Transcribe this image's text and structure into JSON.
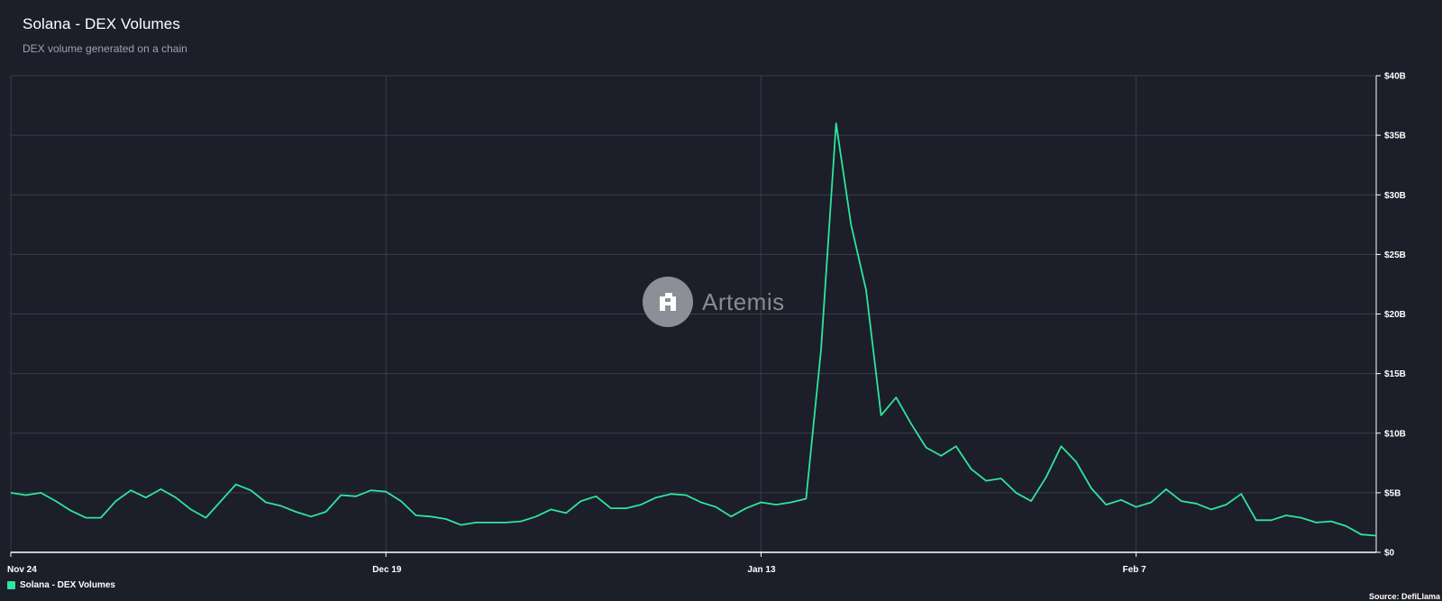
{
  "header": {
    "title": "Solana - DEX Volumes",
    "subtitle": "DEX volume generated on a chain"
  },
  "watermark": {
    "text": "Artemis",
    "icon": "artemis-logo-icon"
  },
  "legend": {
    "label": "Solana - DEX Volumes"
  },
  "source": {
    "text": "Source: DefiLlama"
  },
  "colors": {
    "background": "#1c1e29",
    "grid": "#3a3d4b",
    "line": "#2ee59d",
    "axis": "#ffffff"
  },
  "chart_data": {
    "type": "line",
    "title": "Solana - DEX Volumes",
    "subtitle": "DEX volume generated on a chain",
    "xlabel": "",
    "ylabel": "",
    "x_ticks": [
      {
        "label": "Nov 24",
        "index": 0
      },
      {
        "label": "Dec 19",
        "index": 25
      },
      {
        "label": "Jan 13",
        "index": 50
      },
      {
        "label": "Feb 7",
        "index": 75
      }
    ],
    "y_ticks": [
      "$0",
      "$5B",
      "$10B",
      "$15B",
      "$20B",
      "$25B",
      "$30B",
      "$35B",
      "$40B"
    ],
    "ylim": [
      0,
      40
    ],
    "y_unit": "billion USD",
    "grid": true,
    "legend_position": "bottom-left",
    "series": [
      {
        "name": "Solana - DEX Volumes",
        "color": "#2ee59d",
        "values": [
          5.0,
          4.8,
          5.0,
          4.3,
          3.5,
          2.9,
          2.9,
          4.3,
          5.2,
          4.6,
          5.3,
          4.6,
          3.6,
          2.9,
          4.3,
          5.7,
          5.2,
          4.2,
          3.9,
          3.4,
          3.0,
          3.4,
          4.8,
          4.7,
          5.2,
          5.1,
          4.3,
          3.1,
          3.0,
          2.8,
          2.3,
          2.5,
          2.5,
          2.5,
          2.6,
          3.0,
          3.6,
          3.3,
          4.3,
          4.7,
          3.7,
          3.7,
          4.0,
          4.6,
          4.9,
          4.8,
          4.2,
          3.8,
          3.0,
          3.7,
          4.2,
          4.0,
          4.2,
          4.5,
          17.0,
          36.0,
          27.5,
          22.0,
          11.5,
          13.0,
          10.8,
          8.8,
          8.1,
          8.9,
          7.0,
          6.0,
          6.2,
          5.0,
          4.3,
          6.3,
          8.9,
          7.6,
          5.4,
          4.0,
          4.4,
          3.8,
          4.2,
          5.3,
          4.3,
          4.1,
          3.6,
          4.0,
          4.9,
          2.7,
          2.7,
          3.1,
          2.9,
          2.5,
          2.6,
          2.2,
          1.5,
          1.4
        ]
      }
    ]
  }
}
